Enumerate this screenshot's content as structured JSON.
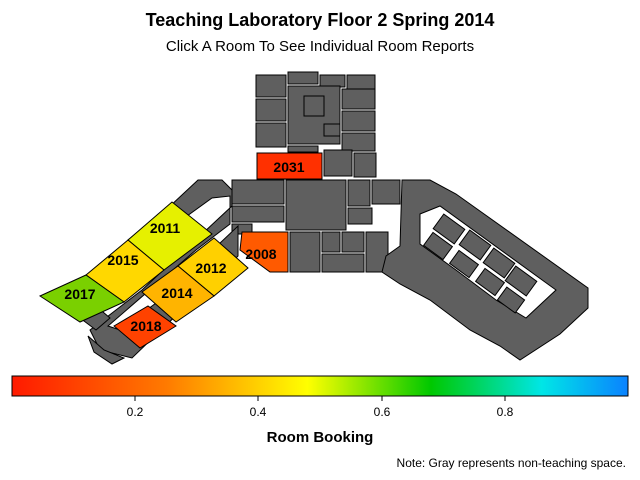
{
  "title": "Teaching Laboratory Floor 2 Spring 2014",
  "subtitle": "Click A Room To See Individual Room Reports",
  "colorbar": {
    "label": "Room Booking",
    "ticks": [
      "0.2",
      "0.4",
      "0.6",
      "0.8"
    ],
    "colors": [
      "#ff1a00",
      "#ff7a00",
      "#ffff00",
      "#00c800",
      "#00e6e6",
      "#0a82ff"
    ]
  },
  "note": "Note: Gray represents non-teaching space.",
  "rooms": [
    {
      "id": "2031",
      "label": "2031",
      "color": "#ff3000"
    },
    {
      "id": "2008",
      "label": "2008",
      "color": "#ff5a00"
    },
    {
      "id": "2011",
      "label": "2011",
      "color": "#e6f000"
    },
    {
      "id": "2015",
      "label": "2015",
      "color": "#ffd800"
    },
    {
      "id": "2012",
      "label": "2012",
      "color": "#ffd000"
    },
    {
      "id": "2014",
      "label": "2014",
      "color": "#ffb400"
    },
    {
      "id": "2017",
      "label": "2017",
      "color": "#7ad000"
    },
    {
      "id": "2018",
      "label": "2018",
      "color": "#ff4200"
    }
  ]
}
